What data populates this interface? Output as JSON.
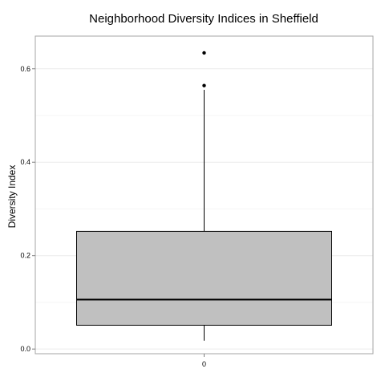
{
  "chart_data": {
    "type": "box",
    "title": "Neighborhood Diversity Indices in Sheffield",
    "ylabel": "Diversity Index",
    "xlabel": "",
    "categories": [
      "0"
    ],
    "ylim": [
      -0.01,
      0.67
    ],
    "yticks": [
      0.0,
      0.2,
      0.4,
      0.6
    ],
    "ytick_labels": [
      "0.0",
      "0.2",
      "0.4",
      "0.6"
    ],
    "grid": true,
    "box": {
      "category": "0",
      "whisker_low": 0.018,
      "q1": 0.051,
      "median": 0.106,
      "q3": 0.252,
      "whisker_high": 0.555
    },
    "outliers": [
      0.564,
      0.634
    ],
    "colors": {
      "box_fill": "#c0c0c0",
      "box_stroke": "#000000",
      "panel_border": "#a6a6a6",
      "grid_major": "#ececec",
      "grid_minor": "#f6f6f6"
    }
  }
}
